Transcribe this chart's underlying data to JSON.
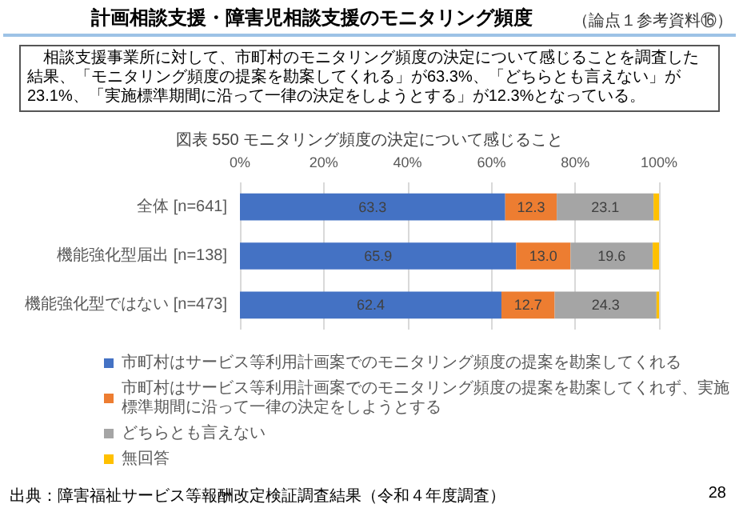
{
  "chart_data": {
    "type": "bar",
    "title": "図表 550 モニタリング頻度の決定について感じること",
    "annotations": [
      "計画相談支援・障害児相談支援のモニタリング頻度",
      "（論点１参考資料⑯）",
      "相談支援事業所に対して、市町村のモニタリング頻度の決定について感じることを調査した結果、「モニタリング頻度の提案を勘案してくれる」が63.3%、「どちらとも言えない」が23.1%、「実施標準期間に沿って一律の決定をしようとする」が12.3%となっている。",
      "出典：障害福祉サービス等報酬改定検証調査結果（令和４年度調査）",
      "28"
    ],
    "categories": [
      "全体 [n=641]",
      "機能強化型届出 [n=138]",
      "機能強化型ではない [n=473]"
    ],
    "orientation": "horizontal",
    "stacked": true,
    "series": [
      {
        "name": "市町村はサービス等利用計画案でのモニタリング頻度の提案を勘案してくれる",
        "color": "#4472c4",
        "values": [
          63.3,
          65.9,
          62.4
        ],
        "value_labels": [
          "63.3",
          "65.9",
          "62.4"
        ]
      },
      {
        "name": "市町村はサービス等利用計画案でのモニタリング頻度の提案を勘案してくれず、実施標準期間に沿って一律の決定をしようとする",
        "color": "#ed7d31",
        "values": [
          12.3,
          13.0,
          12.7
        ],
        "value_labels": [
          "12.3",
          "13.0",
          "12.7"
        ]
      },
      {
        "name": "どちらとも言えない",
        "color": "#a5a5a5",
        "values": [
          23.1,
          19.6,
          24.3
        ],
        "value_labels": [
          "23.1",
          "19.6",
          "24.3"
        ]
      },
      {
        "name": "無回答",
        "color": "#ffc000",
        "values": [
          1.3,
          1.5,
          0.6
        ]
      }
    ],
    "xlim": [
      0,
      100
    ],
    "xticks": [
      {
        "value": 0,
        "label": "0%"
      },
      {
        "value": 20,
        "label": "20%"
      },
      {
        "value": 40,
        "label": "40%"
      },
      {
        "value": 60,
        "label": "60%"
      },
      {
        "value": 80,
        "label": "80%"
      },
      {
        "value": 100,
        "label": "100%"
      }
    ],
    "grid": "x",
    "legend": "bottom"
  }
}
